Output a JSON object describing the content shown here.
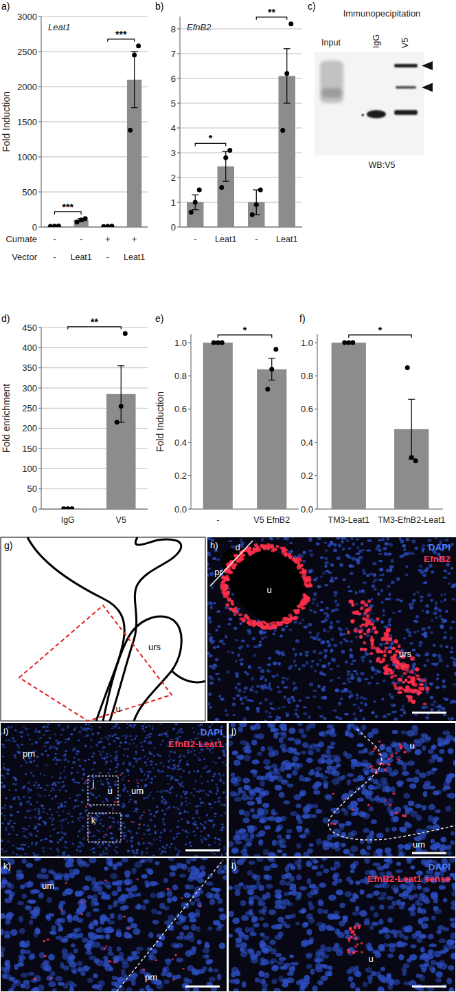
{
  "chart_data": [
    {
      "type": "bar",
      "panel_label": "a)",
      "title": "Leat1",
      "y_label": "Fold Induction",
      "categories": [
        "-",
        "Leat1",
        "-",
        "Leat1"
      ],
      "x_label": "Vector",
      "x_row": {
        "label": "Cumate",
        "values": [
          "-",
          "-",
          "+",
          "+"
        ]
      },
      "values": [
        15,
        100,
        12,
        2100
      ],
      "errors": [
        5,
        20,
        5,
        400
      ],
      "points": [
        [
          10,
          12,
          14
        ],
        [
          70,
          100,
          120
        ],
        [
          8,
          10,
          12
        ],
        [
          1380,
          2450,
          2580
        ]
      ],
      "color": "#8c8c8c",
      "ylim": [
        0,
        3000
      ],
      "yticks": [
        0,
        500,
        1000,
        1500,
        2000,
        2500,
        3000
      ],
      "grid": true,
      "significance": [
        {
          "label": "***",
          "between": [
            0,
            1
          ]
        },
        {
          "label": "***",
          "between": [
            2,
            3
          ]
        }
      ]
    },
    {
      "type": "bar",
      "panel_label": "b)",
      "title": "EfnB2",
      "categories": [
        "-",
        "Leat1",
        "-",
        "Leat1"
      ],
      "values": [
        1.0,
        2.45,
        1.0,
        6.1
      ],
      "errors": [
        0.3,
        0.6,
        0.5,
        1.1
      ],
      "points": [
        [
          0.6,
          1.0,
          1.5
        ],
        [
          1.6,
          2.8,
          3.1
        ],
        [
          0.5,
          0.9,
          1.5
        ],
        [
          3.9,
          6.2,
          8.2
        ]
      ],
      "color": "#8c8c8c",
      "ylim": [
        0,
        8.5
      ],
      "yticks": [
        0,
        1,
        2,
        3,
        4,
        5,
        6,
        7,
        8
      ],
      "grid": true,
      "significance": [
        {
          "label": "*",
          "between": [
            0,
            1
          ]
        },
        {
          "label": "**",
          "between": [
            2,
            3
          ]
        }
      ]
    },
    {
      "type": "bar",
      "panel_label": "d)",
      "y_label": "Fold enrichment",
      "categories": [
        "IgG",
        "V5"
      ],
      "values": [
        1,
        285
      ],
      "errors": [
        0.5,
        70
      ],
      "points": [
        [
          1,
          1,
          1
        ],
        [
          215,
          255,
          435
        ]
      ],
      "color": "#8c8c8c",
      "ylim": [
        0,
        450
      ],
      "yticks": [
        0,
        50,
        100,
        150,
        200,
        250,
        300,
        350,
        400,
        450
      ],
      "grid": true,
      "significance": [
        {
          "label": "**",
          "between": [
            0,
            1
          ]
        }
      ]
    },
    {
      "type": "bar",
      "panel_label": "e)",
      "y_label": "Fold Induction",
      "categories": [
        "-",
        "V5 EfnB2"
      ],
      "values": [
        1.0,
        0.84
      ],
      "errors": [
        0.005,
        0.065
      ],
      "points": [
        [
          1,
          1,
          1
        ],
        [
          0.72,
          0.84,
          0.96
        ]
      ],
      "color": "#8c8c8c",
      "ylim": [
        0,
        1.05
      ],
      "yticks": [
        {
          "value": 0,
          "label": "0.0"
        },
        0.2,
        0.4,
        0.6,
        0.8,
        {
          "value": 1,
          "label": "1.0"
        }
      ],
      "grid": false,
      "significance": [
        {
          "label": "*",
          "between": [
            0,
            1
          ]
        }
      ]
    },
    {
      "type": "bar",
      "panel_label": "f)",
      "categories": [
        "TM3-Leat1",
        "TM3-EfnB2-Leat1"
      ],
      "values": [
        1.0,
        0.48
      ],
      "errors": [
        0.005,
        0.18
      ],
      "points": [
        [
          1,
          1,
          1
        ],
        [
          0.85,
          0.31,
          0.29
        ]
      ],
      "color": "#8c8c8c",
      "ylim": [
        0,
        1.05
      ],
      "yticks": [
        {
          "value": 0,
          "label": "0.0"
        },
        0.2,
        0.4,
        0.6,
        0.8,
        {
          "value": 1,
          "label": "1.0"
        }
      ],
      "grid": false,
      "significance": [
        {
          "label": "*",
          "between": [
            0,
            1
          ]
        }
      ]
    }
  ],
  "image_panels": {
    "c": {
      "label": "c)",
      "title": "Immunopecipitation",
      "lanes": [
        "Input",
        "IgG",
        "V5"
      ],
      "blot_label": "WB:V5",
      "band_mark": "*"
    },
    "g": {
      "label": "g)",
      "regions": [
        "urs",
        "u"
      ]
    },
    "h": {
      "label": "h)",
      "stains": [
        {
          "name": "DAPI",
          "color": "#4f7dff"
        },
        {
          "name": "EfnB2",
          "color": "#ff3a55"
        }
      ],
      "regions": [
        "d",
        "pr",
        "u",
        "urs"
      ]
    },
    "i": {
      "label": "i)",
      "stains": [
        {
          "name": "DAPI",
          "color": "#4f7dff"
        },
        {
          "name": "EfnB2-Leat1",
          "color": "#ff3a55"
        }
      ],
      "regions": [
        "pm",
        "u",
        "um"
      ],
      "insets": [
        "j",
        "k"
      ]
    },
    "j": {
      "label": "j)",
      "regions": [
        "u",
        "um"
      ]
    },
    "k": {
      "label": "k)",
      "regions": [
        "um",
        "pm"
      ]
    },
    "l": {
      "label": "l)",
      "stains": [
        {
          "name": "DAPI",
          "color": "#4f7dff"
        },
        {
          "name": "EfnB2-Leat1 sense",
          "color": "#ff3a55"
        }
      ],
      "regions": [
        "u"
      ]
    }
  }
}
